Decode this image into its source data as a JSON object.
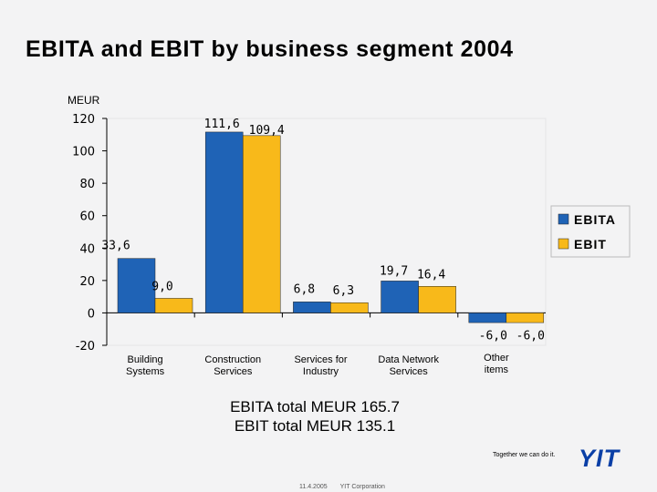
{
  "slide": {
    "title": "EBITA and EBIT by business segment 2004",
    "totals_ebita": "EBITA total MEUR 165.7",
    "totals_ebit": "EBIT total MEUR 135.1",
    "tagline": "Together we can do it.",
    "logo": "YIT",
    "footer_date": "11.4.2005",
    "footer_company": "YIT Corporation"
  },
  "colors": {
    "ebita": "#1f63b6",
    "ebit": "#f8b91a",
    "background": "#f3f3f4"
  },
  "chart_data": {
    "type": "bar",
    "title": "",
    "ylabel": "MEUR",
    "ylim": [
      -20,
      120
    ],
    "yticks": [
      120,
      100,
      80,
      60,
      40,
      20,
      0,
      -20
    ],
    "ytick_labels": [
      "120",
      "100",
      "80",
      "60",
      "40",
      "20",
      "0",
      "-20"
    ],
    "categories": [
      [
        "Building",
        "Systems"
      ],
      [
        "Construction",
        "Services"
      ],
      [
        "Services for",
        "Industry"
      ],
      [
        "Data Network",
        "Services"
      ],
      [
        "Other",
        "items"
      ]
    ],
    "series": [
      {
        "name": "EBITA",
        "values": [
          33.6,
          111.6,
          6.8,
          19.7,
          -6.0
        ],
        "labels": [
          "33,6",
          "111,6",
          "6,8",
          "19,7",
          "-6,0"
        ]
      },
      {
        "name": "EBIT",
        "values": [
          9.0,
          109.4,
          6.3,
          16.4,
          -6.0
        ],
        "labels": [
          "9,0",
          "109,4",
          "6,3",
          "16,4",
          "-6,0"
        ]
      }
    ],
    "legend": "right",
    "grid": false
  }
}
